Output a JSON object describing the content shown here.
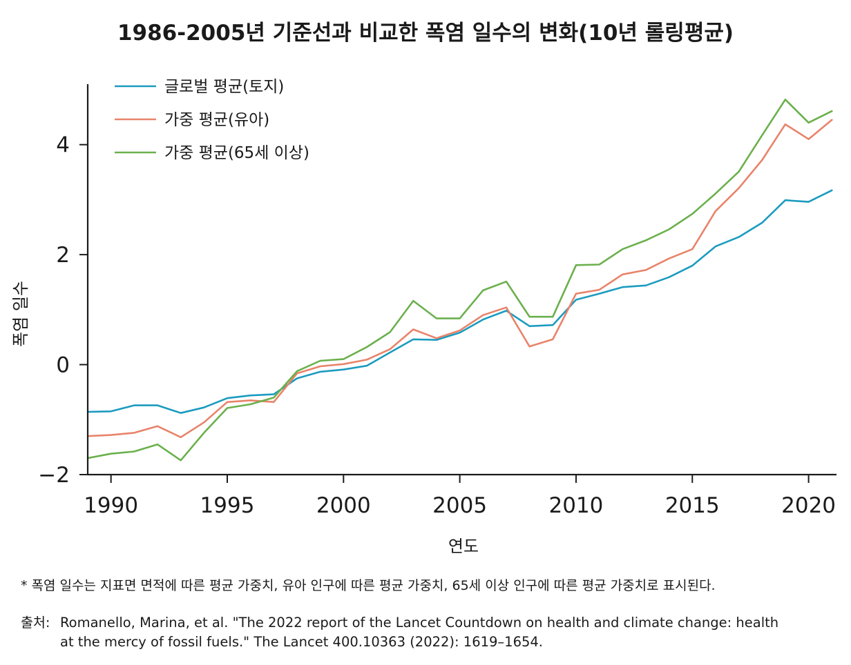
{
  "title": "1986-2005년 기준선과 비교한 폭염 일수의 변화(10년 롤링평균)",
  "chart_data": {
    "type": "line",
    "title": "1986-2005년 기준선과 비교한 폭염 일수의 변화(10년 롤링평균)",
    "xlabel": "연도",
    "ylabel": "폭염 일수",
    "xlim": [
      1989,
      2021.2
    ],
    "ylim": [
      -2,
      5.1
    ],
    "xticks": [
      1990,
      1995,
      2000,
      2005,
      2010,
      2015,
      2020
    ],
    "yticks": [
      -2,
      0,
      2,
      4
    ],
    "ytick_labels": [
      "−2",
      "0",
      "2",
      "4"
    ],
    "legend_position": "top-left",
    "x": [
      1989,
      1990,
      1991,
      1992,
      1993,
      1994,
      1995,
      1996,
      1997,
      1998,
      1999,
      2000,
      2001,
      2002,
      2003,
      2004,
      2005,
      2006,
      2007,
      2008,
      2009,
      2010,
      2011,
      2012,
      2013,
      2014,
      2015,
      2016,
      2017,
      2018,
      2019,
      2020,
      2021
    ],
    "series": [
      {
        "name": "글로벌 평균(토지)",
        "color": "#1b9bbf",
        "values": [
          -0.86,
          -0.85,
          -0.74,
          -0.74,
          -0.88,
          -0.78,
          -0.61,
          -0.56,
          -0.54,
          -0.25,
          -0.13,
          -0.09,
          -0.02,
          0.22,
          0.46,
          0.45,
          0.58,
          0.82,
          0.98,
          0.7,
          0.72,
          1.18,
          1.29,
          1.41,
          1.44,
          1.59,
          1.8,
          2.15,
          2.32,
          2.58,
          2.99,
          2.96,
          3.17
        ]
      },
      {
        "name": "가중 평균(유아)",
        "color": "#e8836a",
        "values": [
          -1.3,
          -1.28,
          -1.24,
          -1.12,
          -1.32,
          -1.05,
          -0.68,
          -0.65,
          -0.68,
          -0.16,
          -0.03,
          0.01,
          0.09,
          0.28,
          0.64,
          0.48,
          0.62,
          0.9,
          1.04,
          0.33,
          0.46,
          1.29,
          1.36,
          1.64,
          1.72,
          1.93,
          2.1,
          2.79,
          3.21,
          3.72,
          4.37,
          4.1,
          4.45
        ]
      },
      {
        "name": "가중 평균(65세 이상)",
        "color": "#6ab04c",
        "values": [
          -1.7,
          -1.62,
          -1.58,
          -1.45,
          -1.74,
          -1.24,
          -0.79,
          -0.72,
          -0.6,
          -0.12,
          0.07,
          0.1,
          0.32,
          0.59,
          1.16,
          0.84,
          0.84,
          1.35,
          1.51,
          0.87,
          0.87,
          1.81,
          1.82,
          2.1,
          2.26,
          2.46,
          2.74,
          3.11,
          3.51,
          4.17,
          4.82,
          4.4,
          4.61
        ]
      }
    ]
  },
  "note": "* 폭염 일수는 지표면 면적에 따른 평균 가중치, 유아 인구에 따른 평균 가중치, 65세 이상 인구에 따른 평균 가중치로 표시된다.",
  "source": {
    "label": "출처:",
    "line1": "Romanello, Marina, et al. \"The 2022 report of the Lancet Countdown on health and climate change: health",
    "line2": "at the mercy of fossil fuels.\" The Lancet 400.10363 (2022): 1619–1654."
  }
}
